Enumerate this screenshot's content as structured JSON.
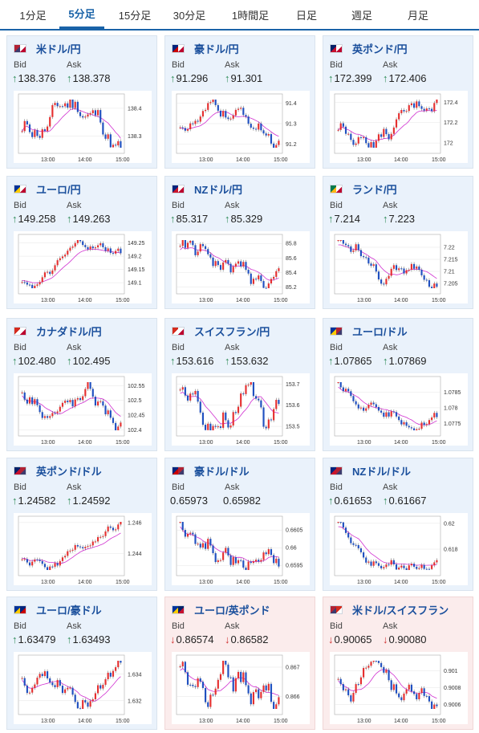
{
  "tabs": [
    "1分足",
    "5分足",
    "15分足",
    "30分足",
    "1時間足",
    "日足",
    "週足",
    "月足"
  ],
  "active_tab": 1,
  "labels": {
    "bid": "Bid",
    "ask": "Ask"
  },
  "colors": {
    "accent": "#1a63a8",
    "up": "#2e8b57",
    "down": "#d03030",
    "candle_up": "#e53030",
    "candle_down": "#2050c0",
    "ma": "#d030d0"
  },
  "xticks": [
    "13:00",
    "14:00",
    "15:00"
  ],
  "pairs": [
    {
      "name": "米ドル/円",
      "bid": "138.376",
      "ask": "138.378",
      "bid_dir": "up",
      "ask_dir": "up",
      "flag": [
        "us",
        "jp"
      ],
      "yticks": [
        "138.4",
        "138.3"
      ],
      "ylim": [
        138.25,
        138.44
      ]
    },
    {
      "name": "豪ドル/円",
      "bid": "91.296",
      "ask": "91.301",
      "bid_dir": "up",
      "ask_dir": "up",
      "flag": [
        "au",
        "jp"
      ],
      "yticks": [
        "91.4",
        "91.3",
        "91.2"
      ],
      "ylim": [
        91.17,
        91.43
      ]
    },
    {
      "name": "英ポンド/円",
      "bid": "172.399",
      "ask": "172.406",
      "bid_dir": "up",
      "ask_dir": "up",
      "flag": [
        "uk",
        "jp"
      ],
      "yticks": [
        "172.4",
        "172.2",
        "172"
      ],
      "ylim": [
        171.93,
        172.45
      ]
    },
    {
      "name": "ユーロ/円",
      "bid": "149.258",
      "ask": "149.263",
      "bid_dir": "up",
      "ask_dir": "up",
      "flag": [
        "eu",
        "jp"
      ],
      "yticks": [
        "149.25",
        "149.2",
        "149.15",
        "149.1"
      ],
      "ylim": [
        149.07,
        149.27
      ]
    },
    {
      "name": "NZドル/円",
      "bid": "85.317",
      "ask": "85.329",
      "bid_dir": "up",
      "ask_dir": "up",
      "flag": [
        "nz",
        "jp"
      ],
      "yticks": [
        "85.8",
        "85.6",
        "85.4",
        "85.2"
      ],
      "ylim": [
        85.15,
        85.88
      ]
    },
    {
      "name": "ランド/円",
      "bid": "7.214",
      "ask": "7.223",
      "bid_dir": "up",
      "ask_dir": "up",
      "flag": [
        "za",
        "jp"
      ],
      "yticks": [
        "7.22",
        "7.215",
        "7.21",
        "7.205"
      ],
      "ylim": [
        7.202,
        7.224
      ]
    },
    {
      "name": "カナダドル/円",
      "bid": "102.480",
      "ask": "102.495",
      "bid_dir": "up",
      "ask_dir": "up",
      "flag": [
        "ca",
        "jp"
      ],
      "yticks": [
        "102.55",
        "102.5",
        "102.45",
        "102.4"
      ],
      "ylim": [
        102.39,
        102.57
      ]
    },
    {
      "name": "スイスフラン/円",
      "bid": "153.616",
      "ask": "153.632",
      "bid_dir": "up",
      "ask_dir": "up",
      "flag": [
        "ch",
        "jp"
      ],
      "yticks": [
        "153.7",
        "153.6",
        "153.5"
      ],
      "ylim": [
        153.47,
        153.72
      ]
    },
    {
      "name": "ユーロ/ドル",
      "bid": "1.07865",
      "ask": "1.07869",
      "bid_dir": "up",
      "ask_dir": "up",
      "flag": [
        "eu",
        "us"
      ],
      "yticks": [
        "1.0785",
        "1.078",
        "1.0775"
      ],
      "ylim": [
        1.0772,
        1.0789
      ]
    },
    {
      "name": "英ポンド/ドル",
      "bid": "1.24582",
      "ask": "1.24592",
      "bid_dir": "up",
      "ask_dir": "up",
      "flag": [
        "uk",
        "us"
      ],
      "yticks": [
        "1.246",
        "1.244"
      ],
      "ylim": [
        1.2428,
        1.2462
      ]
    },
    {
      "name": "豪ドル/ドル",
      "bid": "0.65973",
      "ask": "0.65982",
      "bid_dir": "none",
      "ask_dir": "none",
      "flag": [
        "au",
        "us"
      ],
      "yticks": [
        "0.6605",
        "0.66",
        "0.6595"
      ],
      "ylim": [
        0.6593,
        0.6608
      ]
    },
    {
      "name": "NZドル/ドル",
      "bid": "0.61653",
      "ask": "0.61667",
      "bid_dir": "up",
      "ask_dir": "up",
      "flag": [
        "nz",
        "us"
      ],
      "yticks": [
        "0.62",
        "0.618"
      ],
      "ylim": [
        0.6162,
        0.6203
      ]
    },
    {
      "name": "ユーロ/豪ドル",
      "bid": "1.63479",
      "ask": "1.63493",
      "bid_dir": "up",
      "ask_dir": "up",
      "flag": [
        "eu",
        "au"
      ],
      "yticks": [
        "1.634",
        "1.632"
      ],
      "ylim": [
        1.6312,
        1.6352
      ]
    },
    {
      "name": "ユーロ/英ポンド",
      "bid": "0.86574",
      "ask": "0.86582",
      "bid_dir": "down",
      "ask_dir": "down",
      "flag": [
        "eu",
        "uk"
      ],
      "yticks": [
        "0.867",
        "0.866"
      ],
      "ylim": [
        0.8655,
        0.8673
      ]
    },
    {
      "name": "米ドル/スイスフラン",
      "bid": "0.90065",
      "ask": "0.90080",
      "bid_dir": "down",
      "ask_dir": "down",
      "flag": [
        "us",
        "ch"
      ],
      "yticks": [
        "0.901",
        "0.9008",
        "0.9006"
      ],
      "ylim": [
        0.90052,
        0.90115
      ]
    }
  ]
}
